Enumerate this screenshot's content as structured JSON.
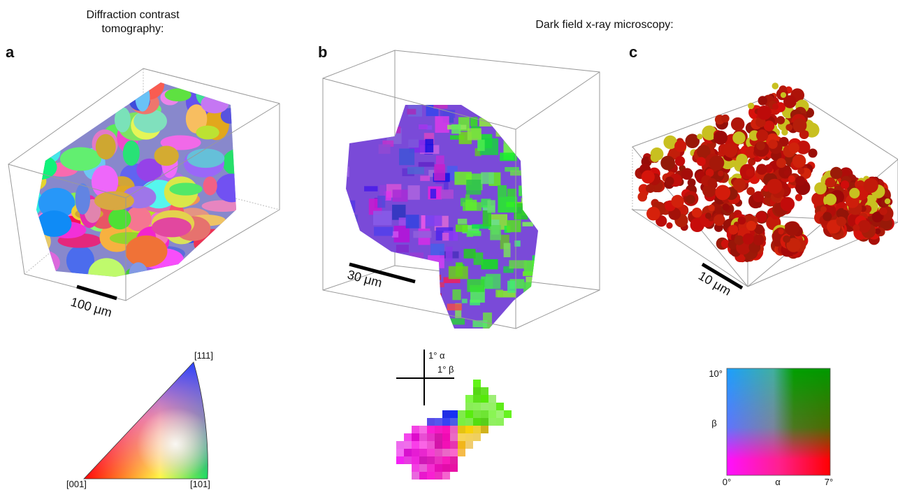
{
  "titles": {
    "dct": "Diffraction contrast tomography:",
    "dfxm": "Dark field x-ray microscopy:"
  },
  "panels": [
    {
      "label": "a",
      "scale_bar": "100 μm",
      "key": {
        "corners": [
          "[111]",
          "[001]",
          "[101]"
        ]
      }
    },
    {
      "label": "b",
      "scale_bar": "30 μm",
      "key": {
        "alpha": "1° α",
        "beta": "1° β"
      }
    },
    {
      "label": "c",
      "scale_bar": "10 μm",
      "key": {
        "y_max": "10°",
        "y_label": "β",
        "x_min": "0°",
        "x_label": "α",
        "x_max": "7°"
      }
    }
  ]
}
